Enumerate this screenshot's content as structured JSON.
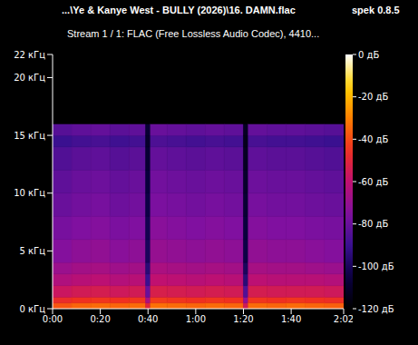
{
  "chart_data": {
    "type": "heatmap",
    "title": "...\\Ye & Kanye West - BULLY (2026)\\16. DAMN.flac",
    "annotation": "spek 0.8.5",
    "subtitle": "Stream 1 / 1: FLAC (Free Lossless Audio Codec), 4410...",
    "x_bins": [
      0,
      8,
      16,
      24,
      32,
      39,
      41,
      48,
      56,
      64,
      72,
      80,
      82,
      90,
      98,
      106,
      114,
      122
    ],
    "y_bins": [
      0,
      0.5,
      1,
      2,
      3,
      4,
      6,
      8,
      10,
      12,
      14,
      15,
      16,
      22
    ],
    "values": [
      [
        -38,
        -47,
        -57,
        -64,
        -69,
        -74,
        -77,
        -80,
        -82,
        -85,
        -90,
        -84,
        -120
      ],
      [
        -35,
        -45,
        -55,
        -62,
        -67,
        -72,
        -75,
        -78,
        -80,
        -83,
        -88,
        -82,
        -120
      ],
      [
        -34,
        -44,
        -54,
        -61,
        -66,
        -71,
        -74,
        -77,
        -79,
        -82,
        -87,
        -81,
        -120
      ],
      [
        -35,
        -45,
        -56,
        -63,
        -68,
        -73,
        -76,
        -79,
        -81,
        -84,
        -89,
        -83,
        -120
      ],
      [
        -34,
        -44,
        -55,
        -62,
        -67,
        -72,
        -75,
        -78,
        -80,
        -83,
        -88,
        -82,
        -120
      ],
      [
        -50,
        -65,
        -80,
        -90,
        -95,
        -100,
        -102,
        -104,
        -106,
        -108,
        -110,
        -108,
        -120
      ],
      [
        -33,
        -43,
        -53,
        -60,
        -65,
        -70,
        -73,
        -76,
        -78,
        -81,
        -86,
        -80,
        -120
      ],
      [
        -34,
        -44,
        -54,
        -61,
        -66,
        -71,
        -74,
        -77,
        -79,
        -82,
        -87,
        -81,
        -120
      ],
      [
        -35,
        -45,
        -55,
        -62,
        -67,
        -72,
        -75,
        -78,
        -80,
        -83,
        -88,
        -82,
        -120
      ],
      [
        -34,
        -44,
        -54,
        -61,
        -66,
        -71,
        -74,
        -77,
        -79,
        -82,
        -87,
        -81,
        -120
      ],
      [
        -35,
        -45,
        -55,
        -62,
        -67,
        -72,
        -75,
        -78,
        -80,
        -83,
        -88,
        -82,
        -120
      ],
      [
        -55,
        -70,
        -85,
        -95,
        -100,
        -104,
        -106,
        -108,
        -110,
        -112,
        -114,
        -112,
        -120
      ],
      [
        -34,
        -44,
        -54,
        -61,
        -66,
        -71,
        -74,
        -77,
        -79,
        -82,
        -87,
        -81,
        -120
      ],
      [
        -35,
        -45,
        -55,
        -62,
        -67,
        -72,
        -75,
        -78,
        -80,
        -83,
        -88,
        -82,
        -120
      ],
      [
        -34,
        -44,
        -55,
        -62,
        -67,
        -72,
        -75,
        -78,
        -80,
        -83,
        -88,
        -82,
        -120
      ],
      [
        -35,
        -45,
        -55,
        -62,
        -68,
        -73,
        -76,
        -79,
        -81,
        -84,
        -89,
        -83,
        -120
      ],
      [
        -36,
        -46,
        -56,
        -63,
        -69,
        -74,
        -77,
        -80,
        -82,
        -85,
        -90,
        -84,
        -120
      ]
    ],
    "xlim": [
      0,
      122
    ],
    "xticks": [
      {
        "value": 0,
        "label": "0:00"
      },
      {
        "value": 20,
        "label": "0:20"
      },
      {
        "value": 40,
        "label": "0:40"
      },
      {
        "value": 60,
        "label": "1:00"
      },
      {
        "value": 80,
        "label": "1:20"
      },
      {
        "value": 100,
        "label": "1:40"
      },
      {
        "value": 122,
        "label": "2:02"
      }
    ],
    "ylim": [
      0,
      22
    ],
    "yticks": [
      {
        "value": 0,
        "label": "0 кГц"
      },
      {
        "value": 5,
        "label": "5 кГц"
      },
      {
        "value": 10,
        "label": "10 кГц"
      },
      {
        "value": 15,
        "label": "15 кГц"
      },
      {
        "value": 20,
        "label": "20 кГц"
      },
      {
        "value": 22,
        "label": "22 кГц"
      }
    ],
    "colorbar": {
      "range": [
        -120,
        0
      ],
      "ticks": [
        {
          "value": 0,
          "label": "0 дБ"
        },
        {
          "value": -20,
          "label": "-20 дБ"
        },
        {
          "value": -40,
          "label": "-40 дБ"
        },
        {
          "value": -60,
          "label": "-60 дБ"
        },
        {
          "value": -80,
          "label": "-80 дБ"
        },
        {
          "value": -100,
          "label": "-100 дБ"
        },
        {
          "value": -120,
          "label": "-120 дБ"
        }
      ]
    }
  }
}
